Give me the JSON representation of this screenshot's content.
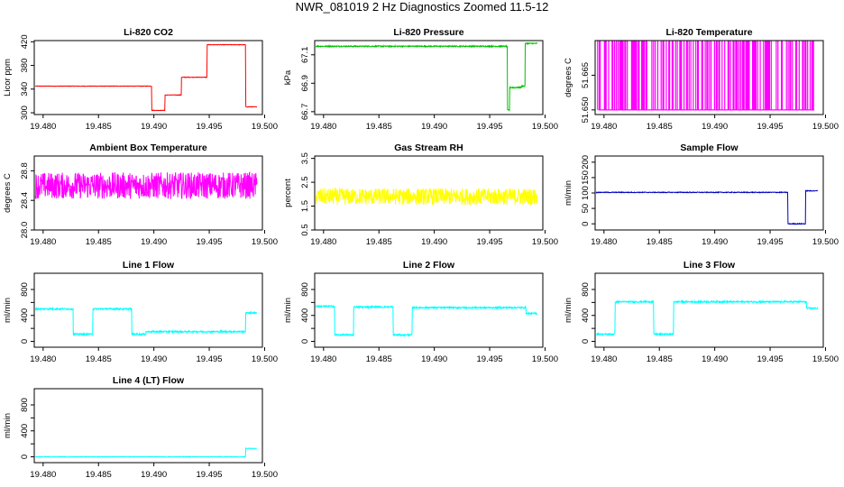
{
  "figure_title": "NWR_081019  2 Hz Diagnostics Zoomed 11.5-12",
  "chart_data": [
    {
      "id": "co2",
      "type": "line",
      "title": "Li-820 CO2",
      "ylabel": "Licor ppm",
      "color": "#ff0000",
      "xlim": [
        19.4792,
        19.4998
      ],
      "ylim": [
        297,
        422
      ],
      "xticks": [
        19.48,
        19.485,
        19.49,
        19.495,
        19.5
      ],
      "yticks": [
        300,
        340,
        380,
        420
      ],
      "ytick_labels": [
        "300",
        "340",
        "380",
        "420"
      ],
      "noise": 0.4,
      "steps": [
        [
          19.4792,
          345
        ],
        [
          19.4898,
          304
        ],
        [
          19.491,
          330
        ],
        [
          19.4925,
          360
        ],
        [
          19.4948,
          415
        ],
        [
          19.4983,
          310
        ]
      ]
    },
    {
      "id": "pressure",
      "type": "line",
      "title": "Li-820 Pressure",
      "ylabel": "kPa",
      "color": "#00c000",
      "xlim": [
        19.4792,
        19.4998
      ],
      "ylim": [
        66.68,
        67.2
      ],
      "xticks": [
        19.48,
        19.485,
        19.49,
        19.495,
        19.5
      ],
      "yticks": [
        66.7,
        66.9,
        67.1
      ],
      "ytick_labels": [
        "66.7",
        "66.9",
        "67.1"
      ],
      "noise": 0.004,
      "steps": [
        [
          19.4792,
          67.16
        ],
        [
          19.4966,
          66.71
        ],
        [
          19.4968,
          66.87
        ],
        [
          19.4979,
          66.88
        ],
        [
          19.4982,
          67.18
        ]
      ]
    },
    {
      "id": "temperature",
      "type": "line",
      "title": "Li-820 Temperature",
      "ylabel": "degrees C",
      "color": "#ff00ff",
      "xlim": [
        19.4792,
        19.4998
      ],
      "ylim": [
        51.648,
        51.68
      ],
      "xticks": [
        19.48,
        19.485,
        19.49,
        19.495,
        19.5
      ],
      "yticks": [
        51.65,
        51.665
      ],
      "ytick_labels": [
        "51.650",
        "51.665"
      ],
      "pattern": "binary",
      "levels": [
        51.65,
        51.68
      ]
    },
    {
      "id": "ambient",
      "type": "line",
      "title": "Ambient Box Temperature",
      "ylabel": "degrees C",
      "color": "#ff00ff",
      "xlim": [
        19.4792,
        19.4998
      ],
      "ylim": [
        28.0,
        29.0
      ],
      "xticks": [
        19.48,
        19.485,
        19.49,
        19.495,
        19.5
      ],
      "yticks": [
        28.0,
        28.4,
        28.8
      ],
      "ytick_labels": [
        "28.0",
        "28.4",
        "28.8"
      ],
      "noise": 0.18,
      "steps": [
        [
          19.4792,
          28.6
        ]
      ]
    },
    {
      "id": "rh",
      "type": "line",
      "title": "Gas Stream RH",
      "ylabel": "percent",
      "color": "#ffff00",
      "xlim": [
        19.4792,
        19.4998
      ],
      "ylim": [
        0.5,
        3.6
      ],
      "xticks": [
        19.48,
        19.485,
        19.49,
        19.495,
        19.5
      ],
      "yticks": [
        0.5,
        1.5,
        2.5,
        3.5
      ],
      "ytick_labels": [
        "0.5",
        "1.5",
        "2.5",
        "3.5"
      ],
      "noise": 0.35,
      "steps": [
        [
          19.4792,
          1.9
        ]
      ]
    },
    {
      "id": "sample",
      "type": "line",
      "title": "Sample Flow",
      "ylabel": "ml/min",
      "color": "#0000c0",
      "xlim": [
        19.4792,
        19.4998
      ],
      "ylim": [
        -20,
        220
      ],
      "xticks": [
        19.48,
        19.485,
        19.49,
        19.495,
        19.5
      ],
      "yticks": [
        0,
        50,
        100,
        150,
        200
      ],
      "ytick_labels": [
        "0",
        "50",
        "100",
        "150",
        "200"
      ],
      "noise": 1.2,
      "steps": [
        [
          19.4792,
          102
        ],
        [
          19.4966,
          0
        ],
        [
          19.4982,
          107
        ]
      ]
    },
    {
      "id": "line1",
      "type": "line",
      "title": "Line 1 Flow",
      "ylabel": "ml/min",
      "color": "#00ffff",
      "xlim": [
        19.4792,
        19.4998
      ],
      "ylim": [
        -90,
        1050
      ],
      "xticks": [
        19.48,
        19.485,
        19.49,
        19.495,
        19.5
      ],
      "yticks": [
        0,
        200,
        400,
        600,
        800
      ],
      "ytick_labels": [
        "0",
        "",
        "400",
        "",
        "800"
      ],
      "noise": 12,
      "steps": [
        [
          19.4792,
          500
        ],
        [
          19.4827,
          110
        ],
        [
          19.4845,
          500
        ],
        [
          19.488,
          110
        ],
        [
          19.4893,
          150
        ],
        [
          19.4983,
          440
        ]
      ]
    },
    {
      "id": "line2",
      "type": "line",
      "title": "Line 2 Flow",
      "ylabel": "ml/min",
      "color": "#00ffff",
      "xlim": [
        19.4792,
        19.4998
      ],
      "ylim": [
        -90,
        1050
      ],
      "xticks": [
        19.48,
        19.485,
        19.49,
        19.495,
        19.5
      ],
      "yticks": [
        0,
        200,
        400,
        600,
        800
      ],
      "ytick_labels": [
        "0",
        "",
        "400",
        "",
        "800"
      ],
      "noise": 12,
      "steps": [
        [
          19.4792,
          540
        ],
        [
          19.481,
          100
        ],
        [
          19.4827,
          530
        ],
        [
          19.4863,
          100
        ],
        [
          19.488,
          520
        ],
        [
          19.4983,
          430
        ]
      ]
    },
    {
      "id": "line3",
      "type": "line",
      "title": "Line 3 Flow",
      "ylabel": "ml/min",
      "color": "#00ffff",
      "xlim": [
        19.4792,
        19.4998
      ],
      "ylim": [
        -90,
        1050
      ],
      "xticks": [
        19.48,
        19.485,
        19.49,
        19.495,
        19.5
      ],
      "yticks": [
        0,
        200,
        400,
        600,
        800
      ],
      "ytick_labels": [
        "0",
        "",
        "400",
        "",
        "800"
      ],
      "noise": 12,
      "steps": [
        [
          19.4792,
          110
        ],
        [
          19.481,
          610
        ],
        [
          19.4845,
          110
        ],
        [
          19.4863,
          610
        ],
        [
          19.4983,
          510
        ]
      ]
    },
    {
      "id": "line4",
      "type": "line",
      "title": "Line 4 (LT) Flow",
      "ylabel": "ml/min",
      "color": "#00ffff",
      "xlim": [
        19.4792,
        19.4998
      ],
      "ylim": [
        -90,
        1050
      ],
      "xticks": [
        19.48,
        19.485,
        19.49,
        19.495,
        19.5
      ],
      "yticks": [
        0,
        200,
        400,
        600,
        800
      ],
      "ytick_labels": [
        "0",
        "",
        "400",
        "",
        "800"
      ],
      "noise": 4,
      "steps": [
        [
          19.4792,
          0
        ],
        [
          19.4983,
          130
        ]
      ]
    }
  ],
  "xtick_labels": [
    "19.480",
    "19.485",
    "19.490",
    "19.495",
    "19.500"
  ]
}
